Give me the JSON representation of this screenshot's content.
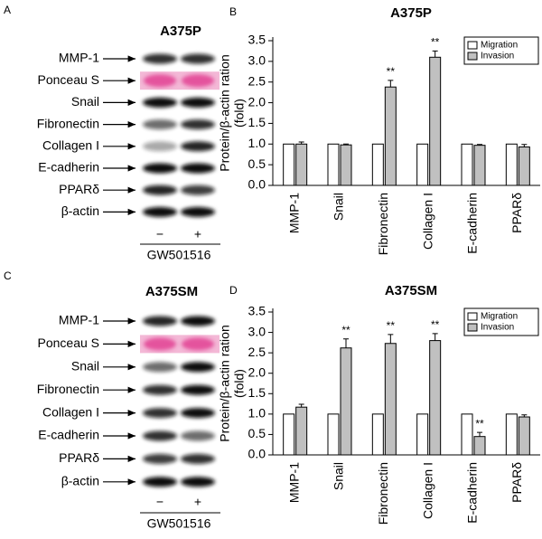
{
  "blots": [
    {
      "letter": "A",
      "title": "A375P",
      "rows": [
        "MMP-1",
        "Ponceau S",
        "Snail",
        "Fibronectin",
        "Collagen I",
        "E-cadherin",
        "PPARδ",
        "β-actin"
      ],
      "treatments": [
        "−",
        "+"
      ],
      "agent": "GW501516"
    },
    {
      "letter": "C",
      "title": "A375SM",
      "rows": [
        "MMP-1",
        "Ponceau S",
        "Snail",
        "Fibronectin",
        "Collagen I",
        "E-cadherin",
        "PPARδ",
        "β-actin"
      ],
      "treatments": [
        "−",
        "+"
      ],
      "agent": "GW501516"
    }
  ],
  "chart_data": [
    {
      "type": "bar",
      "panel": "B",
      "title": "A375P",
      "ylabel": [
        "Protein/β-actin ration",
        "(fold)"
      ],
      "categories": [
        "MMP-1",
        "Snail",
        "Fibronectin",
        "Collagen I",
        "E-cadherin",
        "PPARδ"
      ],
      "series": [
        {
          "name": "Migration",
          "color": "#ffffff",
          "values": [
            1,
            1,
            1,
            1,
            1,
            1
          ]
        },
        {
          "name": "Invasion",
          "color": "#c0c0c0",
          "values": [
            1.0,
            0.98,
            2.38,
            3.1,
            0.97,
            0.93
          ],
          "errors": [
            0.05,
            0.02,
            0.16,
            0.15,
            0.02,
            0.06
          ],
          "significance": [
            null,
            null,
            "**",
            "**",
            null,
            null
          ]
        }
      ],
      "ylim": [
        0,
        3.5
      ],
      "yticks": [
        {
          "value": 0,
          "label": "0.0"
        },
        0.5,
        {
          "value": 1,
          "label": "1.0"
        },
        1.5,
        {
          "value": 2,
          "label": "2.0"
        },
        2.5,
        {
          "value": 3,
          "label": "3.0"
        },
        3.5
      ],
      "legend": "upper right"
    },
    {
      "type": "bar",
      "panel": "D",
      "title": "A375SM",
      "ylabel": [
        "Protein/β-actin ration",
        "(fold)"
      ],
      "categories": [
        "MMP-1",
        "Snail",
        "Fibronectin",
        "Collagen I",
        "E-cadherin",
        "PPARδ"
      ],
      "series": [
        {
          "name": "Migration",
          "color": "#ffffff",
          "values": [
            1,
            1,
            1,
            1,
            1,
            1
          ]
        },
        {
          "name": "Invasion",
          "color": "#c0c0c0",
          "values": [
            1.17,
            2.62,
            2.73,
            2.8,
            0.45,
            0.93
          ],
          "errors": [
            0.07,
            0.22,
            0.22,
            0.17,
            0.1,
            0.05
          ],
          "significance": [
            null,
            "**",
            "**",
            "**",
            "**",
            null
          ]
        }
      ],
      "ylim": [
        0,
        3.5
      ],
      "yticks": [
        {
          "value": 0,
          "label": "0.0"
        },
        0.5,
        {
          "value": 1,
          "label": "1.0"
        },
        1.5,
        {
          "value": 2,
          "label": "2.0"
        },
        2.5,
        {
          "value": 3,
          "label": "3.0"
        },
        3.5
      ],
      "legend": "upper right"
    }
  ]
}
